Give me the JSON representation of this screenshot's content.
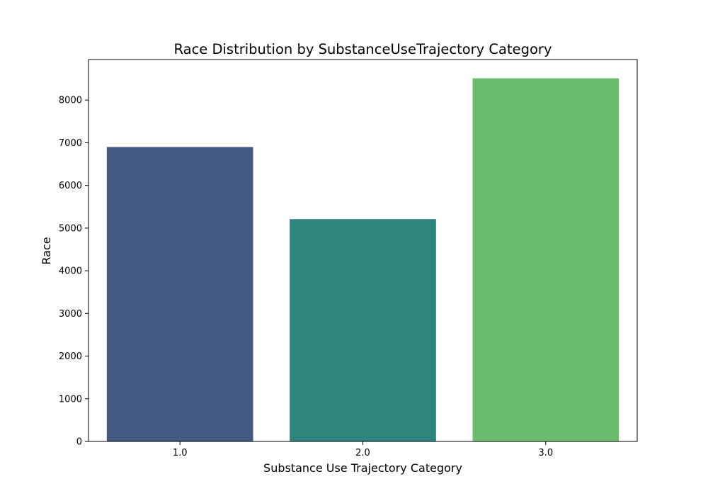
{
  "chart_data": {
    "type": "bar",
    "title": "Race Distribution by SubstanceUseTrajectory Category",
    "xlabel": "Substance Use Trajectory Category",
    "ylabel": "Race",
    "categories": [
      "1.0",
      "2.0",
      "3.0"
    ],
    "values": [
      6900,
      5210,
      8510
    ],
    "colors": [
      "#455a82",
      "#2f857e",
      "#6bbc6c"
    ],
    "ylim": [
      0,
      8950
    ],
    "yticks": [
      0,
      1000,
      2000,
      3000,
      4000,
      5000,
      6000,
      7000,
      8000
    ],
    "grid": false,
    "legend": false
  }
}
